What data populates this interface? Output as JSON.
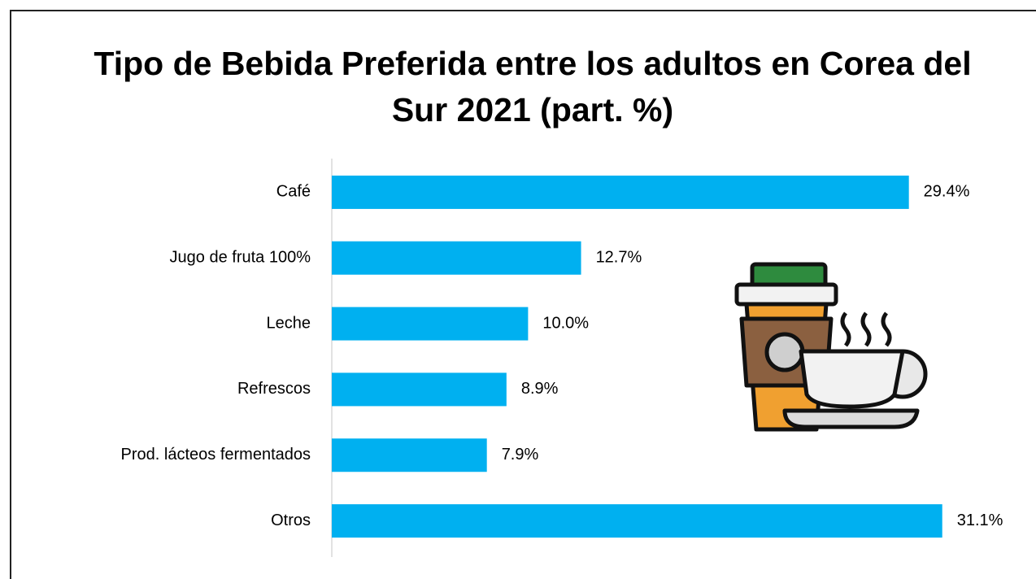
{
  "chart_data": {
    "type": "bar",
    "orientation": "horizontal",
    "title": "Tipo de Bebida Preferida entre los adultos en Corea del Sur 2021 (part. %)",
    "categories": [
      "Café",
      "Jugo de fruta 100%",
      "Leche",
      "Refrescos",
      "Prod. lácteos fermentados",
      "Otros"
    ],
    "values": [
      29.4,
      12.7,
      10.0,
      8.9,
      7.9,
      31.1
    ],
    "value_labels": [
      "29.4%",
      "12.7%",
      "10.0%",
      "8.9%",
      "7.9%",
      "31.1%"
    ],
    "color": "#00b0f0",
    "xlim": [
      0,
      36
    ]
  }
}
